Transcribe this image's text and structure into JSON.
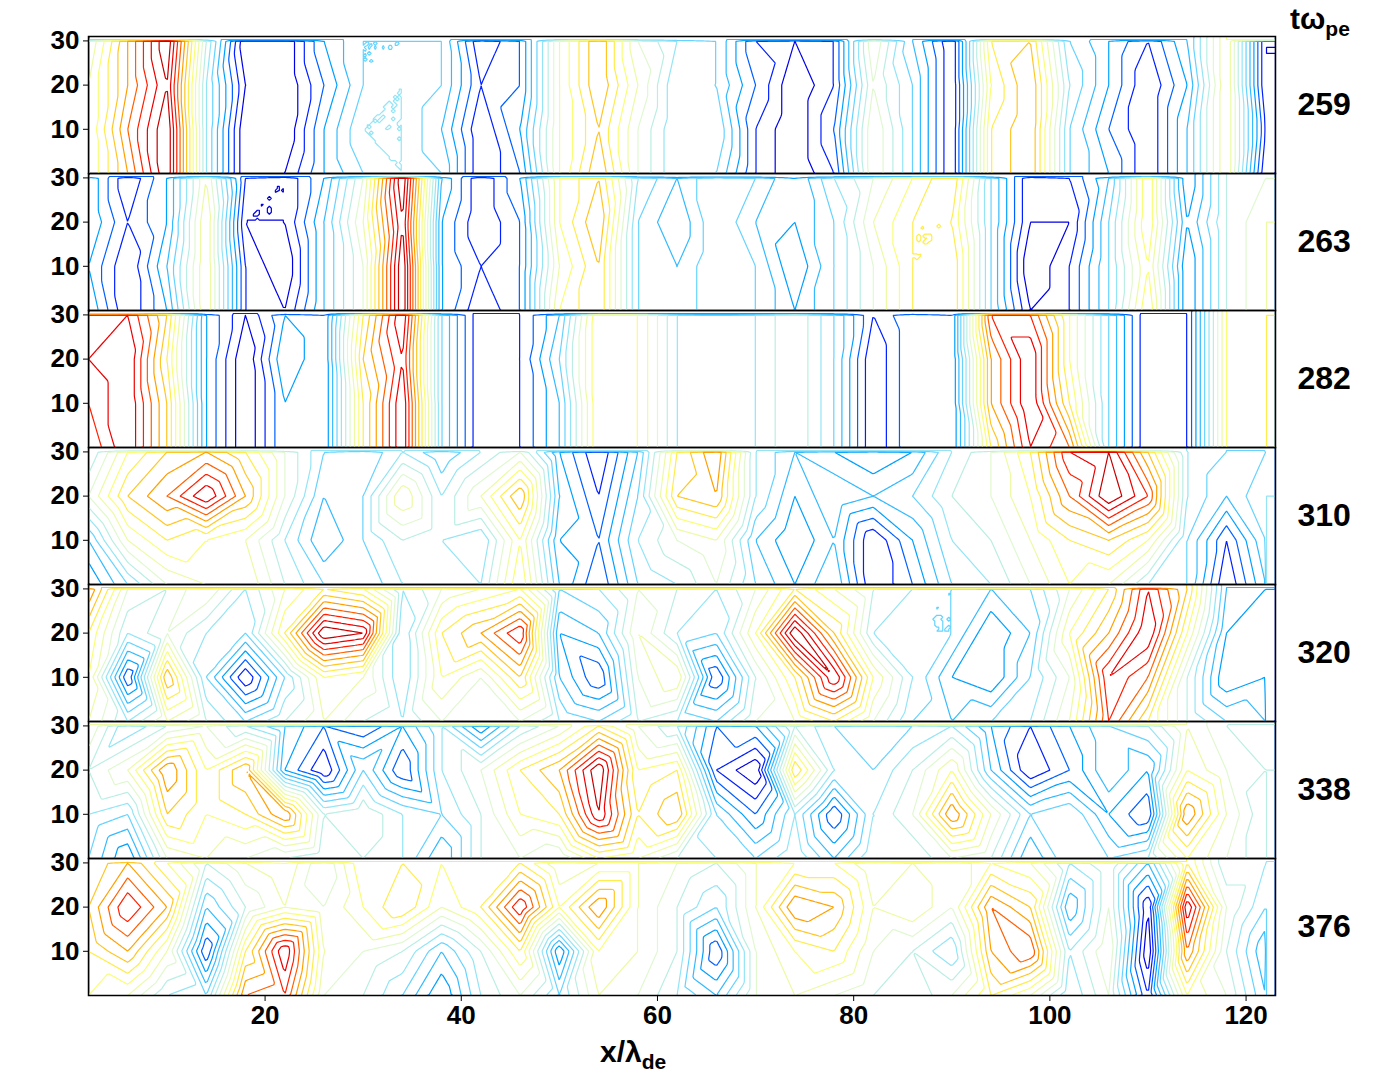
{
  "chart_data": {
    "type": "contour",
    "x_label": {
      "text": "x/λ",
      "subscript": "de"
    },
    "panel_label": {
      "text": "tω",
      "subscript": "pe"
    },
    "xlim": [
      2,
      123
    ],
    "xticks": [
      20,
      40,
      60,
      80,
      100,
      120
    ],
    "ylim": [
      0,
      31
    ],
    "yticks": [
      10,
      20,
      30
    ],
    "value_range": [
      -1,
      1
    ],
    "x": [
      2,
      6,
      10,
      14,
      18,
      22,
      26,
      30,
      34,
      38,
      42,
      46,
      50,
      54,
      58,
      62,
      66,
      70,
      74,
      78,
      82,
      86,
      90,
      94,
      98,
      102,
      106,
      110,
      114,
      118,
      122
    ],
    "y": [
      0,
      10,
      20,
      30
    ],
    "panels": [
      {
        "t": 259,
        "values": [
          [
            0.1,
            0.5,
            1.0,
            -0.2,
            -0.9,
            -0.8,
            -0.5,
            -0.3,
            -0.2,
            -0.3,
            -0.8,
            -0.6,
            0.1,
            0.5,
            0.0,
            -0.3,
            -0.3,
            -0.7,
            -0.9,
            -0.7,
            0.1,
            -0.3,
            -0.8,
            0.3,
            0.5,
            -0.3,
            -0.5,
            -0.8,
            -0.4,
            0.2,
            -0.8
          ],
          [
            0.1,
            0.6,
            1.0,
            -0.2,
            -0.9,
            -0.9,
            -0.5,
            -0.2,
            -0.2,
            -0.4,
            -0.8,
            -0.5,
            0.1,
            0.4,
            0.0,
            -0.3,
            -0.2,
            -0.7,
            -0.9,
            -0.6,
            0.1,
            -0.3,
            -0.8,
            0.3,
            0.5,
            -0.3,
            -0.6,
            -0.8,
            -0.4,
            0.2,
            -0.7
          ],
          [
            0.1,
            0.5,
            0.9,
            -0.2,
            -0.8,
            -0.9,
            -0.6,
            -0.3,
            -0.2,
            -0.3,
            -0.7,
            -0.6,
            0.1,
            0.5,
            0.1,
            -0.3,
            -0.3,
            -0.6,
            -0.9,
            -0.7,
            0.0,
            -0.3,
            -0.8,
            0.2,
            0.5,
            -0.2,
            -0.5,
            -0.8,
            -0.5,
            0.2,
            -0.8
          ],
          [
            0.0,
            0.5,
            1.0,
            -0.1,
            -0.9,
            -0.9,
            -0.5,
            -0.3,
            -0.3,
            -0.3,
            -0.8,
            -0.6,
            0.1,
            0.5,
            0.0,
            -0.2,
            -0.3,
            -0.7,
            -0.8,
            -0.7,
            0.1,
            -0.4,
            -0.8,
            0.3,
            0.4,
            -0.3,
            -0.5,
            -0.7,
            -0.4,
            0.2,
            -0.8
          ]
        ]
      },
      {
        "t": 263,
        "values": [
          [
            -0.4,
            -0.8,
            -0.5,
            0.2,
            -0.7,
            -0.8,
            -0.4,
            0.0,
            1.0,
            -0.5,
            -0.8,
            -0.6,
            0.2,
            0.4,
            -0.3,
            -0.4,
            -0.2,
            -0.3,
            -0.5,
            -0.3,
            0.0,
            0.3,
            0.4,
            -0.3,
            -0.8,
            -0.7,
            -0.3,
            0.3,
            -0.6,
            -0.1,
            0.1
          ],
          [
            -0.5,
            -0.8,
            -0.4,
            0.2,
            -0.7,
            -0.9,
            -0.4,
            0.0,
            1.0,
            -0.5,
            -0.7,
            -0.6,
            0.1,
            0.4,
            -0.3,
            -0.4,
            -0.2,
            -0.3,
            -0.6,
            -0.3,
            0.0,
            0.3,
            0.4,
            -0.3,
            -0.9,
            -0.7,
            -0.3,
            0.2,
            -0.6,
            -0.1,
            0.1
          ],
          [
            -0.4,
            -0.7,
            -0.5,
            0.2,
            -0.8,
            -0.8,
            -0.4,
            0.1,
            0.9,
            -0.5,
            -0.8,
            -0.6,
            0.2,
            0.5,
            -0.3,
            -0.5,
            -0.2,
            -0.4,
            -0.5,
            -0.3,
            0.1,
            0.3,
            0.3,
            -0.3,
            -0.8,
            -0.8,
            -0.3,
            0.3,
            -0.5,
            -0.1,
            0.1
          ],
          [
            -0.4,
            -0.8,
            -0.5,
            0.1,
            -0.7,
            -0.8,
            -0.5,
            0.0,
            1.0,
            -0.4,
            -0.8,
            -0.5,
            0.2,
            0.4,
            -0.2,
            -0.4,
            -0.2,
            -0.3,
            -0.5,
            -0.2,
            0.0,
            0.2,
            0.4,
            -0.3,
            -0.8,
            -0.7,
            -0.4,
            0.3,
            -0.6,
            -0.1,
            0.0
          ]
        ]
      },
      {
        "t": 282,
        "values": [
          [
            0.6,
            0.9,
            0.4,
            -0.5,
            -0.9,
            -0.5,
            -0.6,
            0.3,
            0.9,
            -0.3,
            -0.8,
            -0.7,
            -0.4,
            0.3,
            0.2,
            -0.2,
            -0.3,
            -0.2,
            0.0,
            -0.3,
            -0.8,
            -0.5,
            -0.6,
            0.3,
            0.8,
            0.6,
            -0.3,
            -0.8,
            -0.7,
            0.2,
            0.3
          ],
          [
            0.7,
            0.9,
            0.4,
            -0.5,
            -0.9,
            -0.5,
            -0.6,
            0.3,
            0.9,
            -0.3,
            -0.8,
            -0.7,
            -0.4,
            0.3,
            0.2,
            -0.2,
            -0.3,
            -0.2,
            0.0,
            -0.3,
            -0.8,
            -0.5,
            -0.6,
            0.5,
            0.9,
            0.3,
            -0.3,
            -0.8,
            -0.7,
            0.2,
            0.3
          ],
          [
            0.8,
            0.9,
            0.3,
            -0.5,
            -0.9,
            -0.4,
            -0.6,
            0.4,
            0.8,
            -0.3,
            -0.8,
            -0.7,
            -0.3,
            0.3,
            0.2,
            -0.2,
            -0.3,
            -0.2,
            0.0,
            -0.3,
            -0.8,
            -0.5,
            -0.6,
            0.5,
            0.9,
            0.2,
            -0.3,
            -0.8,
            -0.7,
            0.2,
            0.3
          ],
          [
            0.7,
            0.8,
            0.4,
            -0.5,
            -0.8,
            -0.5,
            -0.6,
            0.3,
            0.9,
            -0.3,
            -0.8,
            -0.7,
            -0.4,
            0.3,
            0.2,
            -0.2,
            -0.3,
            -0.2,
            0.0,
            -0.3,
            -0.7,
            -0.5,
            -0.6,
            0.7,
            0.7,
            0.2,
            -0.3,
            -0.8,
            -0.7,
            0.2,
            0.3
          ]
        ]
      },
      {
        "t": 310,
        "values": [
          [
            -0.6,
            -0.3,
            0.0,
            0.1,
            0.2,
            -0.1,
            -0.3,
            -0.4,
            -0.2,
            -0.1,
            -0.2,
            0.3,
            -0.4,
            -0.7,
            -0.3,
            -0.2,
            0.0,
            -0.3,
            -0.5,
            -0.3,
            -0.8,
            -0.6,
            -0.3,
            -0.2,
            0.0,
            0.2,
            0.1,
            -0.2,
            -0.3,
            -0.8,
            -0.4
          ],
          [
            -0.4,
            0.1,
            0.3,
            0.2,
            0.1,
            -0.2,
            -0.5,
            -0.3,
            -0.1,
            -0.2,
            -0.3,
            0.2,
            -0.5,
            -0.6,
            -0.2,
            0.0,
            0.1,
            -0.4,
            -0.6,
            -0.4,
            -0.8,
            -0.5,
            -0.2,
            -0.1,
            0.1,
            0.3,
            0.4,
            0.2,
            -0.3,
            -0.7,
            -0.3
          ],
          [
            0.0,
            0.4,
            0.6,
            0.9,
            0.5,
            0.0,
            -0.4,
            -0.3,
            0.2,
            -0.2,
            0.1,
            0.5,
            -0.4,
            -0.7,
            -0.3,
            0.4,
            0.5,
            -0.2,
            -0.5,
            -0.3,
            -0.4,
            -0.3,
            -0.1,
            0.0,
            0.2,
            0.6,
            1.0,
            0.7,
            -0.2,
            -0.4,
            -0.2
          ],
          [
            -0.2,
            0.2,
            0.4,
            0.5,
            0.3,
            0.0,
            -0.3,
            -0.4,
            -0.2,
            -0.4,
            -0.2,
            0.0,
            -0.5,
            -0.8,
            -0.4,
            0.3,
            0.6,
            -0.2,
            -0.4,
            -0.5,
            -0.6,
            -0.5,
            -0.2,
            0.0,
            0.3,
            0.8,
            0.9,
            0.4,
            -0.2,
            -0.3,
            -0.3
          ]
        ]
      },
      {
        "t": 320,
        "values": [
          [
            0.1,
            -0.2,
            0.1,
            -0.1,
            -0.3,
            -0.1,
            0.1,
            -0.1,
            -0.2,
            0.0,
            -0.1,
            0.0,
            -0.2,
            -0.3,
            -0.1,
            -0.2,
            -0.3,
            0.0,
            0.1,
            0.3,
            0.0,
            -0.3,
            -0.4,
            -0.3,
            -0.2,
            0.1,
            0.7,
            0.3,
            -0.1,
            -0.3,
            -0.4
          ],
          [
            0.2,
            -0.7,
            0.5,
            -0.3,
            -0.8,
            -0.3,
            0.2,
            0.1,
            -0.3,
            0.2,
            0.0,
            0.4,
            -0.4,
            -0.7,
            0.0,
            0.2,
            -0.7,
            -0.1,
            0.3,
            0.9,
            0.2,
            -0.2,
            -0.5,
            -0.6,
            -0.3,
            0.0,
            0.8,
            0.6,
            -0.1,
            -0.6,
            -0.5
          ],
          [
            0.3,
            -0.2,
            0.0,
            -0.2,
            -0.3,
            0.3,
            1.0,
            0.9,
            -0.3,
            0.3,
            0.5,
            0.8,
            -0.5,
            -0.4,
            0.1,
            -0.2,
            -0.3,
            0.2,
            1.0,
            0.4,
            -0.2,
            -0.3,
            -0.3,
            -0.6,
            -0.4,
            0.2,
            0.5,
            0.9,
            0.2,
            -0.5,
            -0.6
          ],
          [
            0.6,
            0.0,
            -0.1,
            0.1,
            -0.2,
            0.1,
            0.3,
            0.2,
            -0.2,
            0.0,
            0.1,
            0.2,
            -0.3,
            -0.2,
            0.0,
            -0.1,
            -0.2,
            0.0,
            0.3,
            0.1,
            -0.1,
            -0.2,
            -0.3,
            -0.4,
            -0.3,
            0.0,
            0.3,
            0.8,
            0.4,
            -0.4,
            -0.5
          ]
        ]
      },
      {
        "t": 338,
        "values": [
          [
            -0.3,
            -0.6,
            0.0,
            0.1,
            0.0,
            -0.1,
            -0.2,
            -0.1,
            -0.2,
            -0.5,
            -0.1,
            0.0,
            -0.1,
            0.2,
            0.1,
            -0.1,
            -0.2,
            -0.3,
            -0.1,
            -0.4,
            -0.1,
            -0.2,
            0.0,
            -0.1,
            -0.5,
            -0.2,
            -0.3,
            -0.2,
            0.2,
            0.0,
            -0.2
          ],
          [
            -0.2,
            -0.3,
            0.4,
            0.2,
            0.3,
            0.6,
            -0.1,
            0.0,
            -0.2,
            -0.3,
            -0.1,
            0.2,
            0.3,
            0.9,
            0.3,
            0.5,
            -0.3,
            -0.6,
            -0.2,
            -0.7,
            -0.2,
            0.0,
            0.6,
            0.1,
            -0.3,
            -0.2,
            -0.5,
            -0.7,
            0.6,
            0.1,
            -0.2
          ],
          [
            -0.1,
            0.1,
            0.6,
            0.2,
            0.5,
            -0.5,
            -0.8,
            -0.3,
            -0.7,
            -0.2,
            0.0,
            0.3,
            0.5,
            1.0,
            0.2,
            0.3,
            -0.7,
            -0.9,
            0.4,
            -0.2,
            -0.3,
            -0.1,
            0.2,
            -0.4,
            -0.8,
            -0.6,
            -0.3,
            -0.5,
            0.2,
            0.0,
            -0.1
          ],
          [
            0.1,
            -0.3,
            -0.1,
            0.0,
            -0.2,
            -0.4,
            -0.6,
            -0.7,
            -0.5,
            -0.2,
            -0.6,
            -0.2,
            0.0,
            0.3,
            0.0,
            -0.2,
            -0.6,
            -0.5,
            -0.1,
            -0.3,
            -0.4,
            -0.3,
            -0.2,
            -0.5,
            -0.7,
            -0.5,
            -0.3,
            -0.2,
            0.1,
            -0.1,
            -0.2
          ]
        ]
      },
      {
        "t": 376,
        "values": [
          [
            0.2,
            0.1,
            -0.2,
            -0.3,
            0.6,
            0.7,
            0.0,
            -0.1,
            -0.3,
            -0.6,
            -0.2,
            0.0,
            -0.3,
            0.1,
            0.0,
            -0.2,
            -0.4,
            0.0,
            0.1,
            0.0,
            -0.1,
            -0.2,
            0.0,
            0.3,
            0.1,
            -0.3,
            0.0,
            -0.7,
            0.2,
            0.0,
            -0.4
          ],
          [
            0.3,
            0.5,
            0.1,
            -0.7,
            0.3,
            0.9,
            0.1,
            0.0,
            -0.1,
            -0.4,
            -0.1,
            0.3,
            -0.6,
            0.2,
            0.1,
            -0.1,
            -0.7,
            0.0,
            0.2,
            0.3,
            0.0,
            -0.1,
            -0.3,
            0.5,
            0.7,
            -0.2,
            0.1,
            -0.9,
            0.6,
            -0.1,
            -0.5
          ],
          [
            0.4,
            0.8,
            0.5,
            -0.4,
            -0.1,
            0.1,
            0.0,
            0.2,
            0.4,
            0.1,
            0.3,
            0.8,
            0.2,
            0.6,
            0.1,
            -0.1,
            -0.3,
            0.1,
            0.6,
            0.5,
            0.1,
            0.2,
            0.0,
            0.6,
            0.4,
            -0.5,
            0.0,
            -0.8,
            0.9,
            0.0,
            -0.3
          ],
          [
            0.3,
            0.5,
            0.2,
            -0.1,
            0.1,
            0.2,
            -0.1,
            0.3,
            0.3,
            0.2,
            0.2,
            0.3,
            0.0,
            0.1,
            0.1,
            0.0,
            -0.1,
            0.1,
            0.2,
            0.2,
            0.0,
            0.1,
            0.0,
            0.2,
            0.1,
            -0.2,
            0.0,
            -0.4,
            0.3,
            -0.2,
            -0.2
          ]
        ]
      }
    ]
  }
}
